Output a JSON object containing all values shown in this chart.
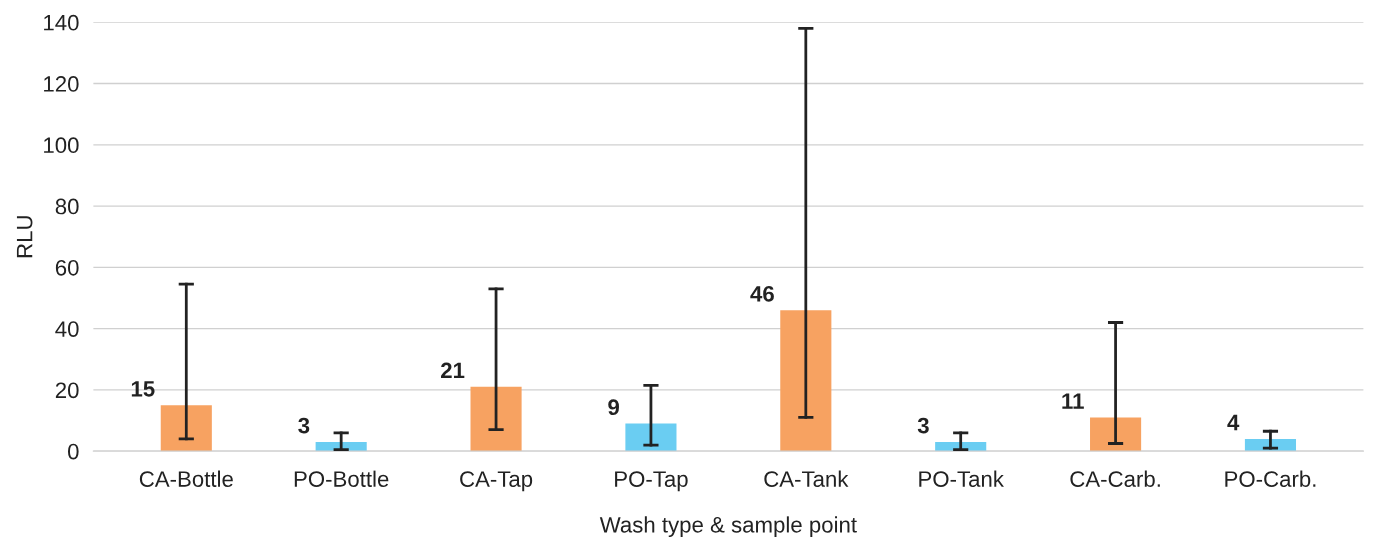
{
  "chart_data": {
    "type": "bar",
    "xlabel": "Wash type & sample point",
    "ylabel": "RLU",
    "categories": [
      "CA-Bottle",
      "PO-Bottle",
      "CA-Tap",
      "PO-Tap",
      "CA-Tank",
      "PO-Tank",
      "CA-Carb.",
      "PO-Carb."
    ],
    "values": [
      15,
      3,
      21,
      9,
      46,
      3,
      11,
      4
    ],
    "colors": [
      "#f7a261",
      "#6acdf2",
      "#f7a261",
      "#6acdf2",
      "#f7a261",
      "#6acdf2",
      "#f7a261",
      "#6acdf2"
    ],
    "errors": [
      [
        4,
        54.5
      ],
      [
        0.5,
        6
      ],
      [
        7,
        53
      ],
      [
        2,
        21.5
      ],
      [
        11,
        138
      ],
      [
        0.5,
        6
      ],
      [
        2.5,
        42
      ],
      [
        1,
        6.5
      ]
    ],
    "data_labels": true,
    "ylim": [
      0,
      140
    ],
    "yticks": [
      0,
      20,
      40,
      60,
      80,
      100,
      120,
      140
    ],
    "grid": "y",
    "legend": false
  }
}
